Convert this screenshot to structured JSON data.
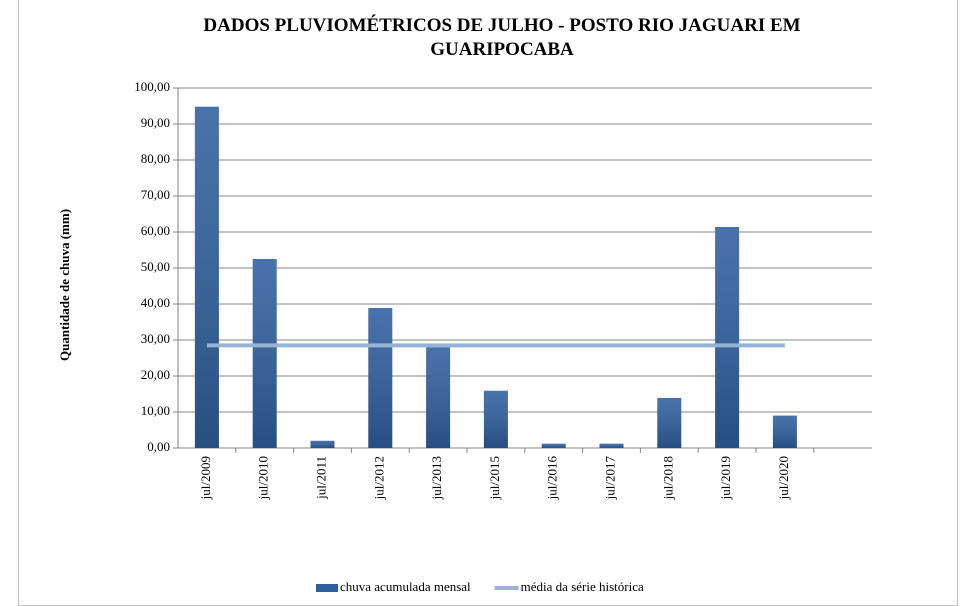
{
  "chart_data": {
    "type": "bar",
    "title": "DADOS PLUVIOMÉTRICOS DE JULHO  - POSTO RIO JAGUARI EM GUARIPOCABA",
    "ylabel": "Quantidade de chuva (mm)",
    "categories": [
      "jul/2009",
      "jul/2010",
      "jul/2011",
      "jul/2012",
      "jul/2013",
      "jul/2015",
      "jul/2016",
      "jul/2017",
      "jul/2018",
      "jul/2019",
      "jul/2020"
    ],
    "series": [
      {
        "name": "chuva acumulada mensal",
        "type": "bar",
        "color": "#2f5f9e",
        "values": [
          94.8,
          52.5,
          2.0,
          38.9,
          28.0,
          15.9,
          1.2,
          1.2,
          13.9,
          61.4,
          9.0
        ]
      },
      {
        "name": "média da série histórica",
        "type": "line",
        "color": "#95b3d7",
        "values": [
          28.5,
          28.5,
          28.5,
          28.5,
          28.5,
          28.5,
          28.5,
          28.5,
          28.5,
          28.5,
          28.5
        ]
      }
    ],
    "ylim": [
      0,
      100
    ],
    "yticks": [
      {
        "value": 0,
        "label": "0,00"
      },
      {
        "value": 10,
        "label": "10,00"
      },
      {
        "value": 20,
        "label": "20,00"
      },
      {
        "value": 30,
        "label": "30,00"
      },
      {
        "value": 40,
        "label": "40,00"
      },
      {
        "value": 50,
        "label": "50,00"
      },
      {
        "value": 60,
        "label": "60,00"
      },
      {
        "value": 70,
        "label": "70,00"
      },
      {
        "value": 80,
        "label": "80,00"
      },
      {
        "value": 90,
        "label": "90,00"
      },
      {
        "value": 100,
        "label": "100,00"
      }
    ],
    "grid": true,
    "legend": "bottom"
  }
}
